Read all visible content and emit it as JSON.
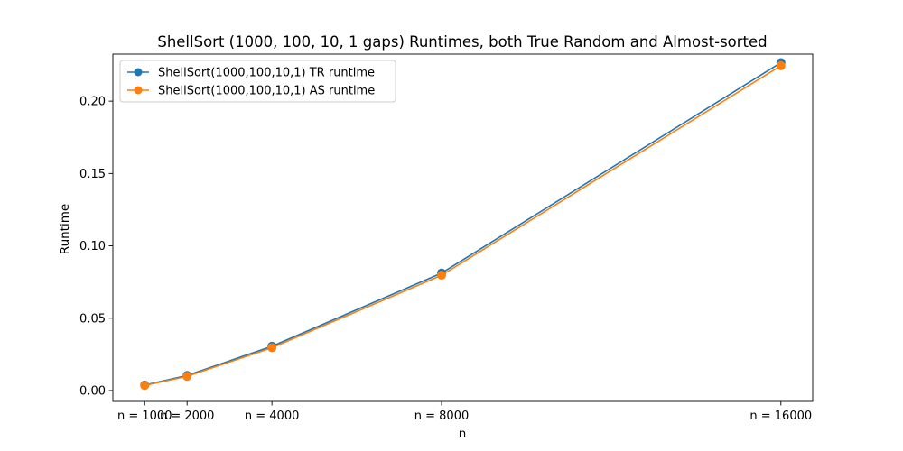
{
  "chart_data": {
    "type": "line",
    "title": "ShellSort (1000, 100, 10, 1 gaps) Runtimes, both True Random and Almost-sorted",
    "xlabel": "n",
    "ylabel": "Runtime",
    "x": [
      1000,
      2000,
      4000,
      8000,
      16000
    ],
    "xtick_labels": [
      "n = 1000",
      "n = 2000",
      "n = 4000",
      "n = 8000",
      "n = 16000"
    ],
    "xlim": [
      250,
      16750
    ],
    "ylim": [
      -0.0075,
      0.2325
    ],
    "yticks": [
      0.0,
      0.05,
      0.1,
      0.15,
      0.2
    ],
    "ytick_labels": [
      "0.00",
      "0.05",
      "0.10",
      "0.15",
      "0.20"
    ],
    "grid": false,
    "legend_position": "upper-left",
    "series": [
      {
        "name": "ShellSort(1000,100,10,1) TR runtime",
        "color": "#1f77b4",
        "marker": "circle",
        "values": [
          0.0038,
          0.0104,
          0.0306,
          0.0812,
          0.2266
        ]
      },
      {
        "name": "ShellSort(1000,100,10,1) AS runtime",
        "color": "#ff7f0e",
        "marker": "circle",
        "values": [
          0.0035,
          0.0098,
          0.0296,
          0.0797,
          0.2245
        ]
      }
    ]
  }
}
